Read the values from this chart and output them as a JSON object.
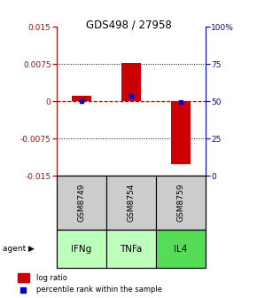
{
  "title": "GDS498 / 27958",
  "samples": [
    "GSM8749",
    "GSM8754",
    "GSM8759"
  ],
  "agents": [
    "IFNg",
    "TNFa",
    "IL4"
  ],
  "log_ratios": [
    0.00115,
    0.0078,
    -0.0126
  ],
  "percentile_ranks": [
    0.499,
    0.535,
    0.496
  ],
  "ylim_left": [
    -0.015,
    0.015
  ],
  "ylim_right": [
    0,
    1.0
  ],
  "yticks_left": [
    -0.015,
    -0.0075,
    0,
    0.0075,
    0.015
  ],
  "ytick_labels_left": [
    "-0.015",
    "-0.0075",
    "0",
    "0.0075",
    "0.015"
  ],
  "yticks_right": [
    0,
    0.25,
    0.5,
    0.75,
    1.0
  ],
  "ytick_labels_right": [
    "0",
    "25",
    "50",
    "75",
    "100%"
  ],
  "bar_color": "#cc0000",
  "dot_color": "#0000cc",
  "agent_colors": [
    "#bbffbb",
    "#bbffbb",
    "#55dd55"
  ],
  "sample_bg_color": "#cccccc",
  "title_color": "#000000",
  "left_axis_color": "#cc0000",
  "right_axis_color": "#0000cc",
  "zero_line_color": "#cc0000",
  "bar_width": 0.4,
  "legend_red_label": "log ratio",
  "legend_blue_label": "percentile rank within the sample"
}
